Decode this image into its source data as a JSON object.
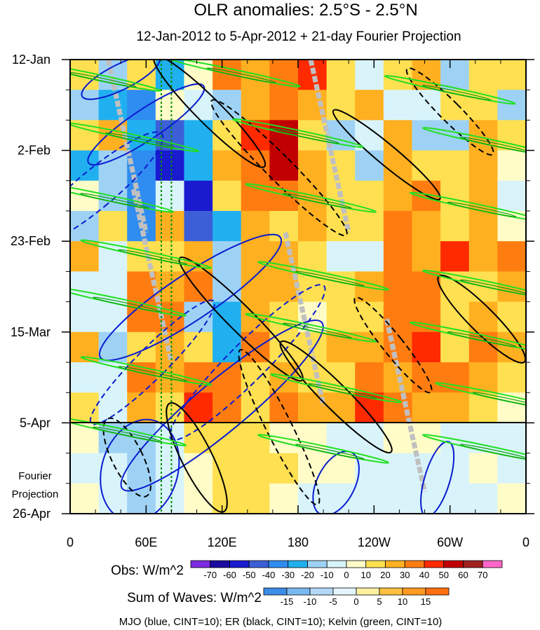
{
  "chart_data": {
    "type": "heatmap",
    "title": "OLR anomalies: 2.5°S - 2.5°N",
    "subtitle": "12-Jan-2012 to 5-Apr-2012 + 21-day Fourier Projection",
    "x_range_deg_east": [
      0,
      360
    ],
    "x_ticks": [
      {
        "lon": 0,
        "label": "0"
      },
      {
        "lon": 60,
        "label": "60E"
      },
      {
        "lon": 120,
        "label": "120E"
      },
      {
        "lon": 180,
        "label": "180"
      },
      {
        "lon": 240,
        "label": "120W"
      },
      {
        "lon": 300,
        "label": "60W"
      },
      {
        "lon": 360,
        "label": "0"
      }
    ],
    "y_range_days": [
      0,
      105
    ],
    "y_ticks": [
      {
        "day": 0,
        "label": "12-Jan"
      },
      {
        "day": 21,
        "label": "2-Feb"
      },
      {
        "day": 42,
        "label": "23-Feb"
      },
      {
        "day": 63,
        "label": "15-Mar"
      },
      {
        "day": 84,
        "label": "5-Apr"
      },
      {
        "day": 105,
        "label": "26-Apr"
      }
    ],
    "projection_label": [
      "Fourier",
      "Projection"
    ],
    "projection_start_day": 84,
    "reference_lines_lon": [
      72,
      80
    ],
    "obs_colorbar": {
      "label": "Obs: W/m^2",
      "levels": [
        -70,
        -60,
        -50,
        -40,
        -30,
        -20,
        -10,
        0,
        10,
        20,
        30,
        40,
        50,
        60,
        70
      ],
      "colors": [
        "#7b2be0",
        "#1a0aa0",
        "#1a1acf",
        "#3c5fd8",
        "#2f8cf0",
        "#20b0f0",
        "#9ed2f5",
        "#d8f4fa",
        "#fffcc8",
        "#ffe050",
        "#ffb020",
        "#ff7d10",
        "#ff2a00",
        "#c00000",
        "#a02020",
        "#ff66c8"
      ]
    },
    "waves_colorbar": {
      "label": "Sum of Waves: W/m^2",
      "levels": [
        -15,
        -10,
        -5,
        0,
        5,
        10,
        15
      ],
      "colors": [
        "#3c8ce8",
        "#7ab8f0",
        "#b4d8f6",
        "#e4f4fb",
        "#fff0a0",
        "#ffc040",
        "#ff9a20",
        "#ff7010"
      ]
    },
    "cell_values": {
      "lon_step": 22.5,
      "day_step": 7,
      "rows": [
        [
          10,
          -20,
          15,
          -30,
          5,
          30,
          20,
          35,
          40,
          10,
          -10,
          15,
          20,
          -15,
          10,
          15
        ],
        [
          -20,
          -30,
          -40,
          5,
          -10,
          -20,
          20,
          30,
          20,
          10,
          20,
          -10,
          -10,
          15,
          10,
          -20
        ],
        [
          10,
          20,
          -25,
          -50,
          -30,
          10,
          45,
          50,
          10,
          -20,
          -10,
          20,
          -20,
          -15,
          20,
          10
        ],
        [
          -30,
          -20,
          -40,
          -55,
          -30,
          20,
          30,
          55,
          20,
          10,
          -20,
          20,
          15,
          10,
          20,
          5
        ],
        [
          5,
          -20,
          -40,
          -10,
          -60,
          10,
          30,
          30,
          20,
          10,
          10,
          20,
          30,
          10,
          20,
          -10
        ],
        [
          -20,
          10,
          -40,
          20,
          -45,
          -30,
          20,
          15,
          20,
          10,
          15,
          30,
          20,
          10,
          20,
          5
        ],
        [
          20,
          -10,
          10,
          15,
          20,
          -20,
          20,
          25,
          10,
          -10,
          -10,
          30,
          20,
          40,
          20,
          30
        ],
        [
          -10,
          -10,
          30,
          20,
          30,
          -20,
          20,
          20,
          10,
          10,
          20,
          30,
          30,
          10,
          10,
          20
        ],
        [
          -10,
          -10,
          30,
          35,
          -20,
          -30,
          20,
          15,
          5,
          15,
          10,
          30,
          30,
          10,
          20,
          10
        ],
        [
          20,
          -20,
          10,
          20,
          10,
          -30,
          30,
          10,
          10,
          20,
          25,
          30,
          40,
          10,
          30,
          20
        ],
        [
          -10,
          -10,
          30,
          20,
          30,
          30,
          15,
          20,
          10,
          10,
          30,
          20,
          30,
          30,
          20,
          10
        ],
        [
          15,
          -10,
          20,
          15,
          40,
          30,
          10,
          30,
          20,
          20,
          40,
          30,
          20,
          20,
          10,
          5
        ],
        [
          5,
          -15,
          -20,
          -5,
          10,
          10,
          15,
          5,
          0,
          -5,
          -5,
          0,
          0,
          -5,
          -5,
          -5
        ],
        [
          -5,
          -10,
          -15,
          -10,
          5,
          10,
          15,
          10,
          0,
          0,
          -10,
          -5,
          -5,
          -10,
          0,
          -5
        ],
        [
          0,
          -10,
          -15,
          -10,
          5,
          15,
          15,
          5,
          -5,
          -10,
          -10,
          -5,
          -10,
          -10,
          -5,
          0
        ]
      ]
    },
    "contours": [
      {
        "wave": "MJO",
        "sign": "pos",
        "lon": 40,
        "day": 4,
        "rx": 10,
        "ry": 10,
        "tilt": 2.0
      },
      {
        "wave": "MJO",
        "sign": "pos",
        "lon": 60,
        "day": 15,
        "rx": 12,
        "ry": 16,
        "tilt": 1.5
      },
      {
        "wave": "MJO",
        "sign": "neg",
        "lon": 20,
        "day": 30,
        "rx": 15,
        "ry": 20,
        "tilt": 1.2
      },
      {
        "wave": "MJO",
        "sign": "pos",
        "lon": 95,
        "day": 55,
        "rx": 18,
        "ry": 25,
        "tilt": 1.5
      },
      {
        "wave": "MJO",
        "sign": "neg",
        "lon": 65,
        "day": 70,
        "rx": 12,
        "ry": 20,
        "tilt": 1.0
      },
      {
        "wave": "MJO",
        "sign": "pos",
        "lon": 120,
        "day": 80,
        "rx": 20,
        "ry": 30,
        "tilt": 1.2
      },
      {
        "wave": "MJO",
        "sign": "neg",
        "lon": 140,
        "day": 70,
        "rx": 15,
        "ry": 25,
        "tilt": 1.0
      },
      {
        "wave": "MJO",
        "sign": "pos",
        "lon": 55,
        "day": 95,
        "rx": 30,
        "ry": 12,
        "tilt": 0.3
      },
      {
        "wave": "MJO",
        "sign": "pos",
        "lon": 210,
        "day": 98,
        "rx": 15,
        "ry": 8,
        "tilt": 0.5
      },
      {
        "wave": "MJO",
        "sign": "pos",
        "lon": 290,
        "day": 97,
        "rx": 10,
        "ry": 9,
        "tilt": 0.3
      },
      {
        "wave": "ER",
        "sign": "pos",
        "lon": 110,
        "day": 12,
        "rx": 10,
        "ry": 18,
        "tilt": -1.0
      },
      {
        "wave": "ER",
        "sign": "neg",
        "lon": 165,
        "day": 25,
        "rx": 10,
        "ry": 22,
        "tilt": -1.0
      },
      {
        "wave": "ER",
        "sign": "pos",
        "lon": 250,
        "day": 22,
        "rx": 8,
        "ry": 16,
        "tilt": -1.2
      },
      {
        "wave": "ER",
        "sign": "neg",
        "lon": 300,
        "day": 12,
        "rx": 8,
        "ry": 14,
        "tilt": -1.0
      },
      {
        "wave": "ER",
        "sign": "pos",
        "lon": 135,
        "day": 60,
        "rx": 10,
        "ry": 20,
        "tilt": -1.0
      },
      {
        "wave": "ER",
        "sign": "neg",
        "lon": 165,
        "day": 85,
        "rx": 10,
        "ry": 20,
        "tilt": -0.5
      },
      {
        "wave": "ER",
        "sign": "pos",
        "lon": 210,
        "day": 78,
        "rx": 10,
        "ry": 18,
        "tilt": -1.0
      },
      {
        "wave": "ER",
        "sign": "neg",
        "lon": 255,
        "day": 66,
        "rx": 8,
        "ry": 14,
        "tilt": -0.8
      },
      {
        "wave": "ER",
        "sign": "pos",
        "lon": 325,
        "day": 60,
        "rx": 10,
        "ry": 14,
        "tilt": -1.0
      },
      {
        "wave": "ER",
        "sign": "neg",
        "lon": 45,
        "day": 92,
        "rx": 12,
        "ry": 10,
        "tilt": -0.5
      },
      {
        "wave": "ER",
        "sign": "pos",
        "lon": 100,
        "day": 92,
        "rx": 12,
        "ry": 14,
        "tilt": -0.5
      }
    ],
    "kelvin_bands": [
      {
        "lon": 20,
        "day": 4
      },
      {
        "lon": 130,
        "day": 3
      },
      {
        "lon": 300,
        "day": 7
      },
      {
        "lon": 50,
        "day": 18
      },
      {
        "lon": 180,
        "day": 17
      },
      {
        "lon": 330,
        "day": 19
      },
      {
        "lon": 30,
        "day": 32
      },
      {
        "lon": 190,
        "day": 32
      },
      {
        "lon": 320,
        "day": 34
      },
      {
        "lon": 60,
        "day": 45
      },
      {
        "lon": 200,
        "day": 50
      },
      {
        "lon": 330,
        "day": 52
      },
      {
        "lon": 40,
        "day": 56
      },
      {
        "lon": 190,
        "day": 62
      },
      {
        "lon": 320,
        "day": 64
      },
      {
        "lon": 60,
        "day": 72
      },
      {
        "lon": 210,
        "day": 76
      },
      {
        "lon": 340,
        "day": 78
      },
      {
        "lon": 40,
        "day": 86
      },
      {
        "lon": 200,
        "day": 90
      },
      {
        "lon": 330,
        "day": 90
      }
    ],
    "missing_swaths": [
      {
        "lon": 30,
        "day": 0
      },
      {
        "lon": 190,
        "day": 0
      },
      {
        "lon": 50,
        "day": 30
      },
      {
        "lon": 170,
        "day": 40
      },
      {
        "lon": 250,
        "day": 60
      }
    ],
    "footer": "MJO (blue, CINT=10); ER (black, CINT=10); Kelvin (green, CINT=10)",
    "contour_colors": {
      "MJO": "#0a1ccf",
      "ER": "#000000",
      "Kelvin": "#22e022",
      "Kelvin_inner": "#10a010",
      "reference": "#009000",
      "missing": "#c0c0c0"
    }
  }
}
